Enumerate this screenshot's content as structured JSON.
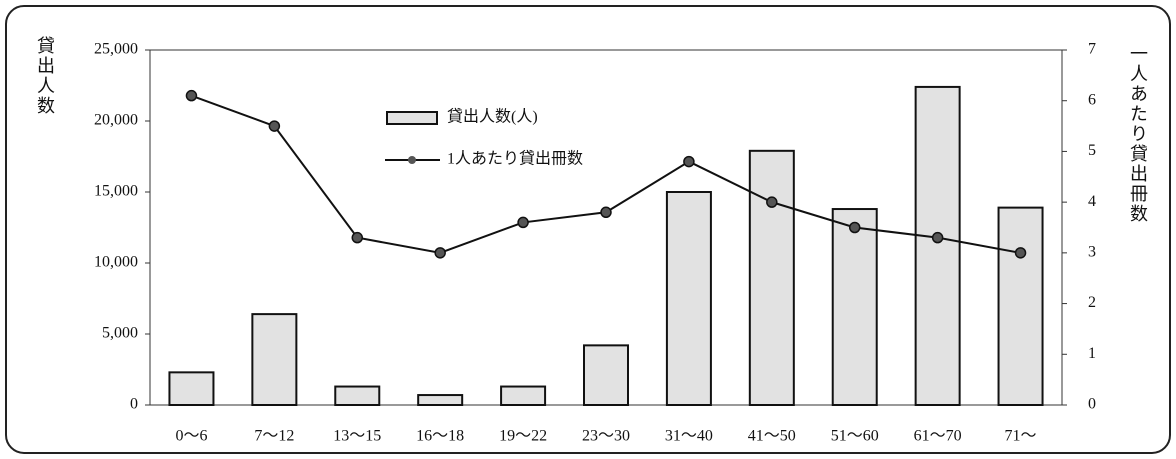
{
  "chart_data": {
    "type": "bar",
    "y_label": "貸出人数",
    "y2_label": "一人あたり貸出冊数",
    "categories": [
      "0～6",
      "7～12",
      "13～15",
      "16～18",
      "19～22",
      "23～30",
      "31～40",
      "41～50",
      "51～60",
      "61～70",
      "71～"
    ],
    "series": [
      {
        "name": "貸出人数(人)",
        "type": "bar",
        "color": "#e2e2e2",
        "values": [
          2300,
          6400,
          1300,
          700,
          1300,
          4200,
          15000,
          17900,
          13800,
          22400,
          13900
        ]
      },
      {
        "name": "1人あたり貸出冊数",
        "type": "line",
        "axis": "y2",
        "color": "#111111",
        "values": [
          6.1,
          5.5,
          3.3,
          3.0,
          3.6,
          3.8,
          4.8,
          4.0,
          3.5,
          3.3,
          3.0
        ]
      }
    ],
    "ylim": [
      0,
      25000
    ],
    "yticks": [
      0,
      {
        "value": 5000,
        "label": "5,000"
      },
      {
        "value": 10000,
        "label": "10,000"
      },
      {
        "value": 15000,
        "label": "15,000"
      },
      {
        "value": 20000,
        "label": "20,000"
      },
      {
        "value": 25000,
        "label": "25,000"
      }
    ],
    "y2lim": [
      0,
      7
    ],
    "y2ticks": [
      0,
      1,
      2,
      3,
      4,
      5,
      6,
      7
    ],
    "grid": false
  }
}
